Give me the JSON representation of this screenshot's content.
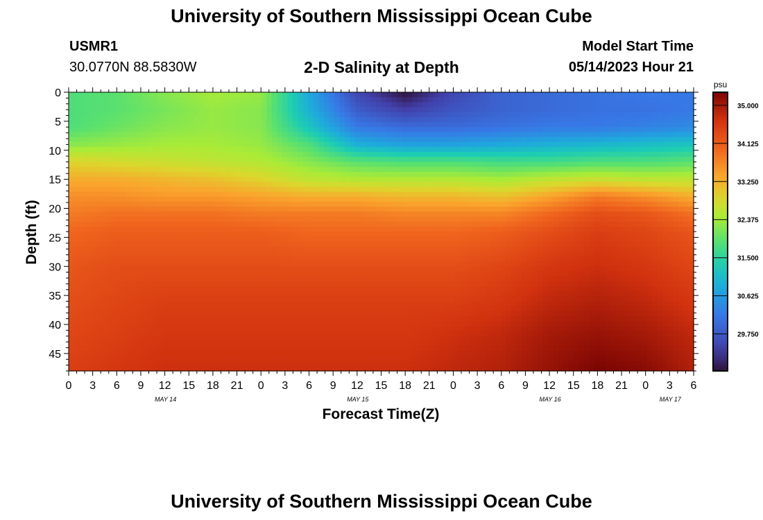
{
  "header": {
    "title": "University of Southern Mississippi Ocean Cube",
    "station_id": "USMR1",
    "station_coords": "30.0770N  88.5830W",
    "plot_title": "2-D Salinity at Depth",
    "start_label": "Model Start Time",
    "start_value": "05/14/2023 Hour 21"
  },
  "footer": {
    "title": "University of Southern Mississippi Ocean Cube"
  },
  "chart_data": {
    "type": "heatmap",
    "title": "2-D Salinity at Depth",
    "xlabel": "Forecast Time(Z)",
    "ylabel": "Depth (ft)",
    "x_ticks": [
      "0",
      "3",
      "6",
      "9",
      "12",
      "15",
      "18",
      "21",
      "0",
      "3",
      "6",
      "9",
      "12",
      "15",
      "18",
      "21",
      "0",
      "3",
      "6",
      "9",
      "12",
      "15",
      "18",
      "21",
      "0",
      "3",
      "6"
    ],
    "date_labels": [
      {
        "label": "MAY 14",
        "at_tick": 4
      },
      {
        "label": "MAY 15",
        "at_tick": 12
      },
      {
        "label": "MAY 16",
        "at_tick": 20
      },
      {
        "label": "MAY 17",
        "at_tick": 25
      }
    ],
    "y_ticks": [
      0,
      5,
      10,
      15,
      20,
      25,
      30,
      35,
      40,
      45
    ],
    "ylim": [
      48,
      0
    ],
    "colorbar": {
      "unit": "psu",
      "min": 28.9,
      "max": 35.3,
      "ticks": [
        "35.000",
        "34.125",
        "33.250",
        "32.375",
        "31.500",
        "30.625",
        "29.750"
      ]
    },
    "grid_depths": [
      0,
      3,
      6,
      9,
      12,
      15,
      18,
      21,
      24,
      30,
      36,
      42,
      48
    ],
    "grid_hours": [
      0,
      6,
      12,
      18,
      24,
      30,
      36,
      42,
      48,
      54,
      60,
      66,
      72,
      78
    ],
    "salinity": [
      [
        31.8,
        31.9,
        32.2,
        32.4,
        32.3,
        30.8,
        29.5,
        28.9,
        29.5,
        29.9,
        30.0,
        30.1,
        30.2,
        30.2
      ],
      [
        31.8,
        31.9,
        32.1,
        32.3,
        32.2,
        30.9,
        29.8,
        29.4,
        29.7,
        29.9,
        30.0,
        30.1,
        30.1,
        30.2
      ],
      [
        31.8,
        32.0,
        32.2,
        32.3,
        32.2,
        31.2,
        30.2,
        30.0,
        30.0,
        30.1,
        30.2,
        30.2,
        30.3,
        30.4
      ],
      [
        32.2,
        32.3,
        32.4,
        32.4,
        32.3,
        31.8,
        30.9,
        30.7,
        30.7,
        30.8,
        30.9,
        31.0,
        31.1,
        31.2
      ],
      [
        32.9,
        32.8,
        32.7,
        32.6,
        32.5,
        32.2,
        31.9,
        31.8,
        31.8,
        31.7,
        31.7,
        31.8,
        31.8,
        31.9
      ],
      [
        33.3,
        33.3,
        33.2,
        33.1,
        32.9,
        32.6,
        32.5,
        32.5,
        32.5,
        32.4,
        32.6,
        32.7,
        32.6,
        32.6
      ],
      [
        33.6,
        33.6,
        33.5,
        33.5,
        33.4,
        33.3,
        33.3,
        33.2,
        33.2,
        33.1,
        33.4,
        33.8,
        33.6,
        33.3
      ],
      [
        33.8,
        33.9,
        33.9,
        33.9,
        33.8,
        33.8,
        33.8,
        33.7,
        33.7,
        33.7,
        34.0,
        34.3,
        34.2,
        33.9
      ],
      [
        34.0,
        34.1,
        34.1,
        34.1,
        34.1,
        34.0,
        34.0,
        34.0,
        34.0,
        34.1,
        34.3,
        34.5,
        34.4,
        34.2
      ],
      [
        34.2,
        34.3,
        34.3,
        34.3,
        34.3,
        34.3,
        34.3,
        34.3,
        34.3,
        34.4,
        34.6,
        34.7,
        34.6,
        34.4
      ],
      [
        34.3,
        34.4,
        34.5,
        34.5,
        34.5,
        34.5,
        34.5,
        34.5,
        34.5,
        34.6,
        34.8,
        34.9,
        34.8,
        34.6
      ],
      [
        34.4,
        34.5,
        34.6,
        34.6,
        34.6,
        34.6,
        34.6,
        34.6,
        34.7,
        34.8,
        35.0,
        35.1,
        35.0,
        34.8
      ],
      [
        34.5,
        34.6,
        34.7,
        34.7,
        34.7,
        34.7,
        34.7,
        34.7,
        34.8,
        34.9,
        35.1,
        35.3,
        35.2,
        34.9
      ]
    ]
  }
}
